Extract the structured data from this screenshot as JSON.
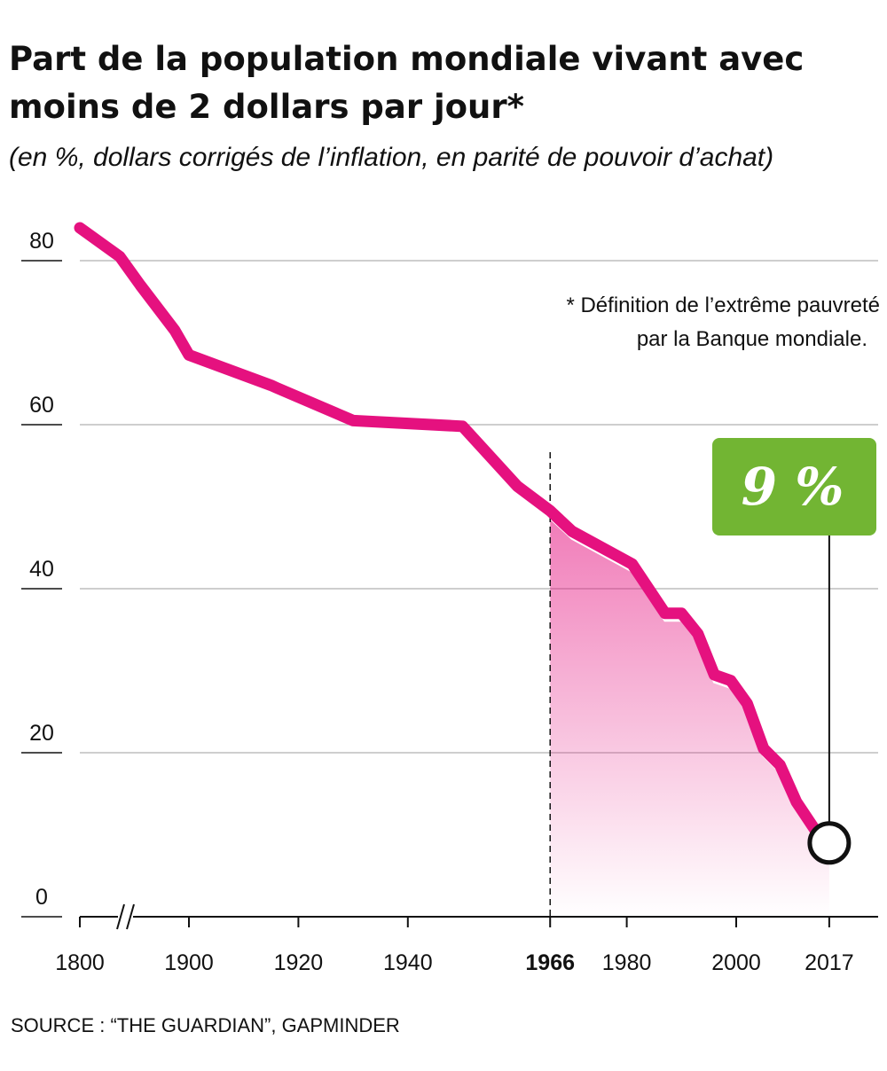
{
  "title": "Part de la population mondiale vivant avec moins de 2 dollars par jour*",
  "subtitle": "(en %, dollars corrigés de l’inflation, en parité de pouvoir d’achat)",
  "source": "SOURCE : “THE GUARDIAN”, GAPMINDER",
  "footnote": [
    "* Définition de l’extrême pauvreté",
    "par la Banque mondiale."
  ],
  "callout": {
    "label": "9 %",
    "color": "#72b533",
    "year": 2017
  },
  "colors": {
    "line": "#e5117f",
    "fill_top": "#e5117f",
    "grid": "#bdbdbd",
    "marker_stroke": "#111111"
  },
  "chart_data": {
    "type": "line",
    "title": "Part de la population mondiale vivant avec moins de 2 dollars par jour*",
    "subtitle": "(en %, dollars corrigés de l’inflation, en parité de pouvoir d’achat)",
    "xlabel": "",
    "ylabel": "",
    "ylim": [
      0,
      80
    ],
    "y_ticks": [
      "0",
      "20",
      "40",
      "60",
      "80"
    ],
    "x_ticks": [
      "1800",
      "1900",
      "1920",
      "1940",
      "1966",
      "1980",
      "2000",
      "2017"
    ],
    "x_tick_emphasis": "1966",
    "axis_break_after": 1800,
    "grid": true,
    "highlight_start_year": 1966,
    "series": [
      {
        "x": [
          1800,
          1890,
          1893,
          1898,
          1900,
          1915,
          1916,
          1930,
          1950,
          1960,
          1966,
          1970,
          1981,
          1984,
          1987,
          1990,
          1993,
          1996,
          1999,
          2002,
          2005,
          2008,
          2011,
          2013,
          2015,
          2017
        ],
        "values": [
          84,
          80.5,
          77,
          71.5,
          68.5,
          64.8,
          64.5,
          60.5,
          59.8,
          52.5,
          49.5,
          47,
          43,
          40,
          37,
          37,
          34.5,
          29.5,
          28.8,
          26,
          20.5,
          18.5,
          14,
          12,
          10,
          9
        ]
      }
    ]
  }
}
